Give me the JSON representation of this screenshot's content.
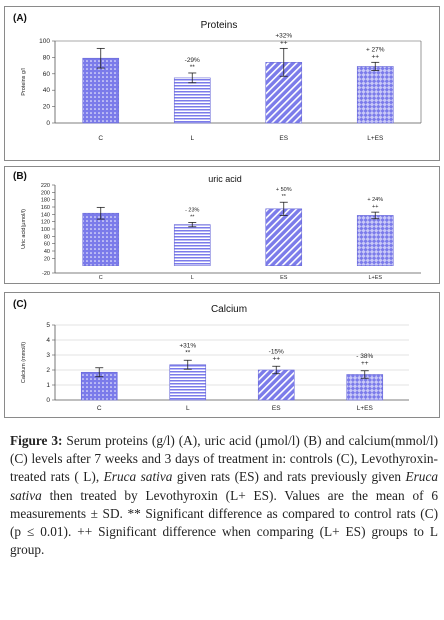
{
  "chart_data": [
    {
      "type": "bar",
      "panel_label": "(A)",
      "title": "Proteins",
      "ylabel": "Proteins g/l",
      "ylim": [
        0,
        100
      ],
      "yticks": [
        "0",
        "20",
        "40",
        "60",
        "80",
        "100"
      ],
      "categories": [
        "C",
        "L",
        "ES",
        "L+ES"
      ],
      "values": [
        79,
        55,
        74,
        69
      ],
      "errors": [
        12,
        6,
        17,
        5
      ],
      "annotations": [
        [
          "",
          ""
        ],
        [
          "-29%",
          "**"
        ],
        [
          "+32%",
          "++"
        ],
        [
          "+ 27%",
          "++"
        ]
      ],
      "patterns": [
        "dots",
        "hlines",
        "diag",
        "checker"
      ],
      "grid": false
    },
    {
      "type": "bar",
      "panel_label": "(B)",
      "title": "uric acid",
      "ylabel": "Uric acid(µmol/l)",
      "ylim": [
        -20,
        220
      ],
      "yticks": [
        "-20",
        "20",
        "40",
        "60",
        "80",
        "100",
        "120",
        "140",
        "160",
        "180",
        "200",
        "220"
      ],
      "categories": [
        "C",
        "L",
        "ES",
        "L+ES"
      ],
      "values": [
        143,
        112,
        155,
        137
      ],
      "errors": [
        16,
        6,
        18,
        9
      ],
      "annotations": [
        [
          "",
          ""
        ],
        [
          "- 23%",
          "**"
        ],
        [
          "+ 50%",
          "**"
        ],
        [
          "+ 24%",
          "++"
        ]
      ],
      "patterns": [
        "dots",
        "hlines",
        "diag",
        "checker"
      ],
      "grid": false
    },
    {
      "type": "bar",
      "panel_label": "(C)",
      "title": "Calcium",
      "ylabel": "Calcium (mmol/l)",
      "ylim": [
        0,
        5
      ],
      "yticks": [
        "0",
        "1",
        "2",
        "3",
        "4",
        "5"
      ],
      "categories": [
        "C",
        "L",
        "ES",
        "L+ES"
      ],
      "values": [
        1.85,
        2.35,
        2.0,
        1.7
      ],
      "errors": [
        0.3,
        0.3,
        0.25,
        0.25
      ],
      "annotations": [
        [
          "",
          ""
        ],
        [
          "+31%",
          "**"
        ],
        [
          "-15%",
          "++"
        ],
        [
          "- 38%",
          "++"
        ]
      ],
      "patterns": [
        "dots",
        "hlines",
        "diag",
        "checker"
      ],
      "grid": true
    }
  ],
  "caption": {
    "label": "Figure 3:",
    "p1": " Serum proteins (g/l) (A), uric acid (µmol/l) (B) and calcium(mmol/l) (C) levels after 7 weeks and 3 days of treatment in: controls (C), Levothyroxin-treated rats ( L), ",
    "italic1": "Eruca sativa",
    "p2": " given rats (ES) and rats previously given ",
    "italic2": "Eruca sativa",
    "p3": " then treated by Levothyroxin (L+ ES). Values are the mean of 6 measurements ± SD. ** Significant difference as compared to control rats (C) (p ≤ 0.01). ++ Significant difference when comparing (L+ ES) groups to L group."
  },
  "colors": {
    "bar": "#7b7bea",
    "bar_light": "#c9c9f7",
    "axis": "#555555",
    "panel_border": "#8a8a8a"
  }
}
